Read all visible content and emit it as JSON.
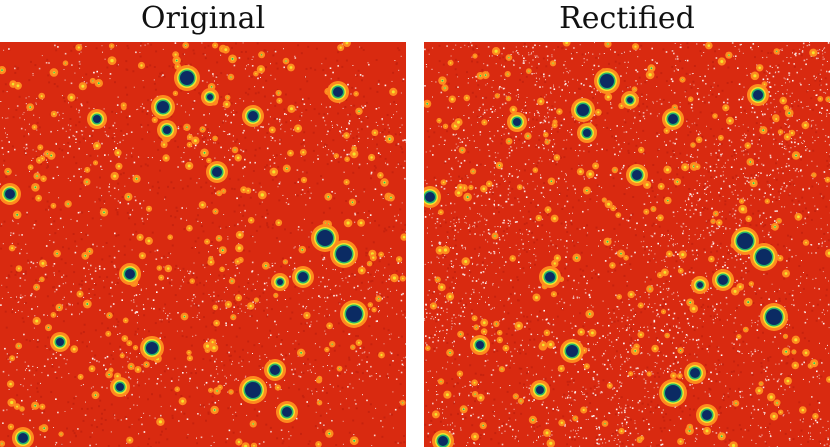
{
  "panels": [
    {
      "title": "Original",
      "image_icon": "star-field-heatmap"
    },
    {
      "title": "Rectified",
      "image_icon": "star-field-heatmap"
    }
  ],
  "colors": {
    "background": "#d92a10",
    "noise_dark": "#b81d0d",
    "noise_light": "#ffffff",
    "star_halo": "#ff8a1e",
    "star_mid": "#f2e52a",
    "star_ring": "#27b36a",
    "star_core": "#0b2b63"
  }
}
